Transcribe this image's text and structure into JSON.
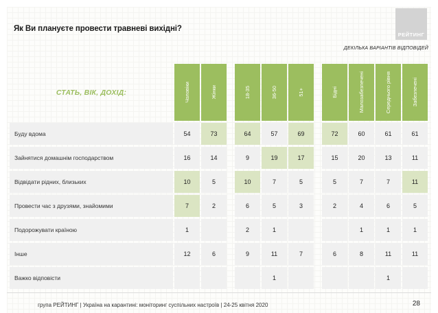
{
  "header": {
    "title": "Як Ви плануєте провести травневі вихідні?",
    "note": "ДЕКІЛЬКА ВАРІАНТІВ ВІДПОВІДЕЙ",
    "logo_text": "РЕЙТИНГ"
  },
  "footer": {
    "text": "група РЕЙТИНГ | Україна на карантині: моніторинг суспільних настроїв  | 24-25 квітня  2020",
    "page_number": "28"
  },
  "chart_data": {
    "type": "table",
    "title": "Як Ви плануєте провести травневі вихідні?",
    "corner_label": "СТАТЬ, ВІК, ДОХІД:",
    "columns": [
      "Чоловіки",
      "Жінки",
      "18-35",
      "36-50",
      "51+",
      "Бідні",
      "Малозабезпечені",
      "Середнього рівня",
      "Забезпечені"
    ],
    "column_groups": [
      2,
      3,
      4
    ],
    "rows": [
      {
        "label": "Буду вдома",
        "values": [
          54,
          73,
          64,
          57,
          69,
          72,
          60,
          61,
          61
        ],
        "highlighted": [
          1,
          2,
          4,
          5
        ]
      },
      {
        "label": "Зайнятися домашнім господарством",
        "values": [
          16,
          14,
          9,
          19,
          17,
          15,
          20,
          13,
          11
        ],
        "highlighted": [
          3,
          4
        ]
      },
      {
        "label": "Відвідати рідних, близьких",
        "values": [
          10,
          5,
          10,
          7,
          5,
          5,
          7,
          7,
          11
        ],
        "highlighted": [
          0,
          2,
          8
        ]
      },
      {
        "label": "Провести час з друзями, знайомими",
        "values": [
          7,
          2,
          6,
          5,
          3,
          2,
          4,
          6,
          5
        ],
        "highlighted": [
          0
        ]
      },
      {
        "label": "Подорожувати країною",
        "values": [
          1,
          "",
          2,
          1,
          "",
          "",
          1,
          1,
          1
        ],
        "highlighted": []
      },
      {
        "label": "Інше",
        "values": [
          12,
          6,
          9,
          11,
          7,
          6,
          8,
          11,
          11
        ],
        "highlighted": []
      },
      {
        "label": "Важко відповісти",
        "values": [
          "",
          "",
          "",
          1,
          "",
          "",
          "",
          1,
          ""
        ],
        "highlighted": []
      }
    ],
    "colors": {
      "header": "#9cbe5f",
      "cell": "#f0f0f0",
      "highlight": "#dbe5c3"
    }
  }
}
